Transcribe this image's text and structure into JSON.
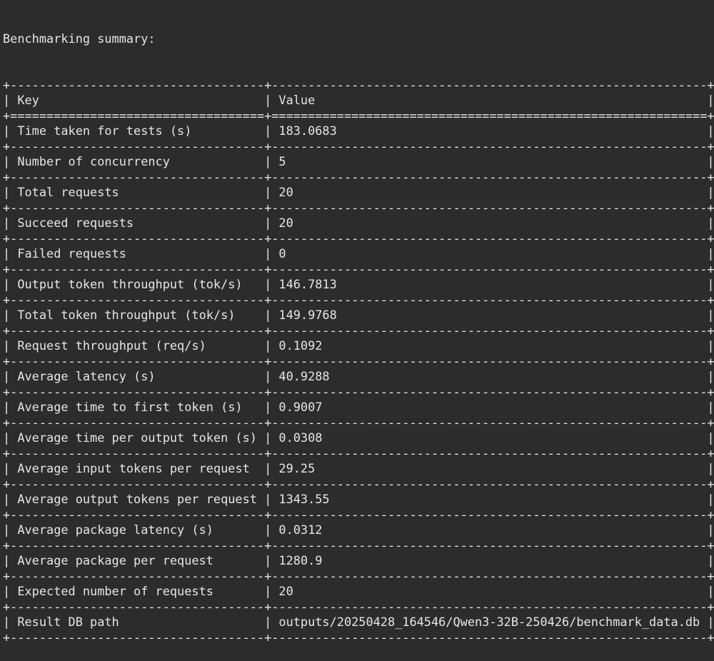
{
  "terminal": {
    "title": "Benchmarking summary:",
    "colors": {
      "background": "#2c2c2c",
      "text": "#e6e6e6"
    },
    "table": {
      "headers": {
        "key": "Key",
        "value": "Value"
      },
      "rows": [
        {
          "key": "Time taken for tests (s)",
          "value": "183.0683"
        },
        {
          "key": "Number of concurrency",
          "value": "5"
        },
        {
          "key": "Total requests",
          "value": "20"
        },
        {
          "key": "Succeed requests",
          "value": "20"
        },
        {
          "key": "Failed requests",
          "value": "0"
        },
        {
          "key": "Output token throughput (tok/s)",
          "value": "146.7813"
        },
        {
          "key": "Total token throughput (tok/s)",
          "value": "149.9768"
        },
        {
          "key": "Request throughput (req/s)",
          "value": "0.1092"
        },
        {
          "key": "Average latency (s)",
          "value": "40.9288"
        },
        {
          "key": "Average time to first token (s)",
          "value": "0.9007"
        },
        {
          "key": "Average time per output token (s)",
          "value": "0.0308"
        },
        {
          "key": "Average input tokens per request",
          "value": "29.25"
        },
        {
          "key": "Average output tokens per request",
          "value": "1343.55"
        },
        {
          "key": "Average package latency (s)",
          "value": "0.0312"
        },
        {
          "key": "Average package per request",
          "value": "1280.9"
        },
        {
          "key": "Expected number of requests",
          "value": "20"
        },
        {
          "key": "Result DB path",
          "value": "outputs/20250428_164546/Qwen3-32B-250426/benchmark_data.db"
        }
      ]
    }
  }
}
